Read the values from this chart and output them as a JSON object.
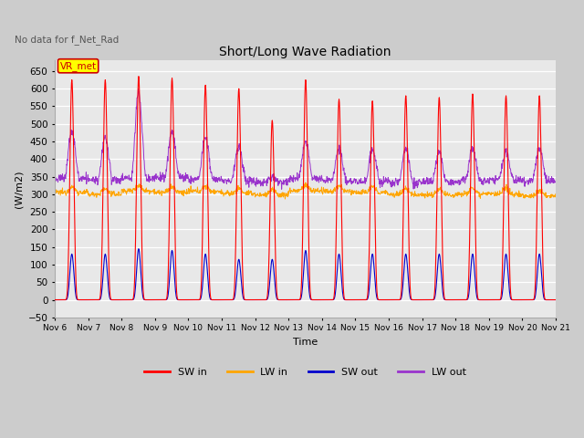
{
  "title": "Short/Long Wave Radiation",
  "subtitle": "No data for f_Net_Rad",
  "xlabel": "Time",
  "ylabel": "(W/m2)",
  "ylim": [
    -50,
    680
  ],
  "yticks": [
    -50,
    0,
    50,
    100,
    150,
    200,
    250,
    300,
    350,
    400,
    450,
    500,
    550,
    600,
    650
  ],
  "date_start": 6,
  "date_end": 21,
  "num_days": 15,
  "SW_in_color": "#ff0000",
  "LW_in_color": "#ffa500",
  "SW_out_color": "#0000cc",
  "LW_out_color": "#9933cc",
  "plot_bg_color": "#e8e8e8",
  "fig_bg_color": "#cccccc",
  "legend_labels": [
    "SW in",
    "LW in",
    "SW out",
    "LW out"
  ],
  "box_label": "VR_met",
  "box_color": "#ffff00",
  "box_border_color": "#cc0000",
  "SW_in_peaks": [
    625,
    625,
    635,
    630,
    610,
    600,
    510,
    625,
    570,
    565,
    580,
    575,
    585,
    580,
    580
  ],
  "SW_out_peaks": [
    130,
    130,
    145,
    140,
    130,
    115,
    115,
    140,
    130,
    130,
    130,
    130,
    130,
    130,
    130
  ]
}
